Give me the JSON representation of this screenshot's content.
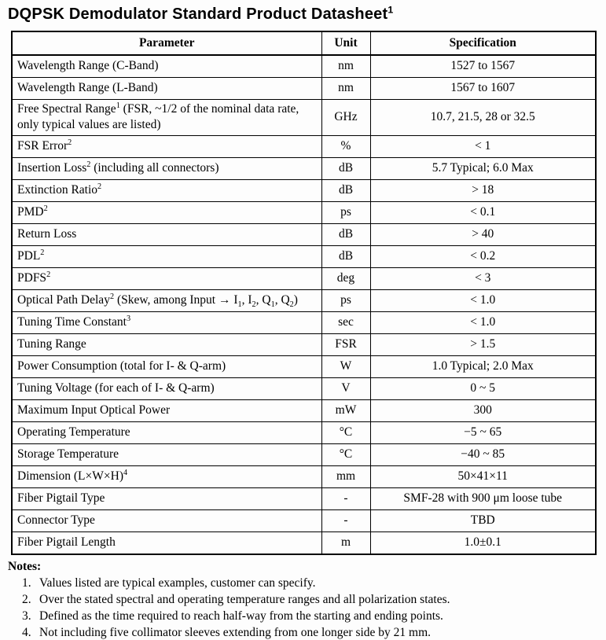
{
  "title": "DQPSK Demodulator Standard Product Datasheet^{1}",
  "table": {
    "headers": [
      "Parameter",
      "Unit",
      "Specification"
    ],
    "rows": [
      {
        "parameter": "Wavelength Range (C-Band)",
        "unit": "nm",
        "specification": "1527 to 1567"
      },
      {
        "parameter": "Wavelength Range (L-Band)",
        "unit": "nm",
        "specification": "1567 to 1607"
      },
      {
        "parameter": "Free Spectral Range^{1} (FSR, ~1/2 of the nominal data rate, only typical values are listed)",
        "unit": "GHz",
        "specification": "10.7, 21.5, 28 or 32.5"
      },
      {
        "parameter": "FSR Error^{2}",
        "unit": "%",
        "specification": "< 1"
      },
      {
        "parameter": "Insertion Loss^{2} (including all connectors)",
        "unit": "dB",
        "specification": "5.7 Typical; 6.0 Max"
      },
      {
        "parameter": "Extinction Ratio^{2}",
        "unit": "dB",
        "specification": "> 18"
      },
      {
        "parameter": "PMD^{2}",
        "unit": "ps",
        "specification": "< 0.1"
      },
      {
        "parameter": "Return Loss",
        "unit": "dB",
        "specification": "> 40"
      },
      {
        "parameter": "PDL^{2}",
        "unit": "dB",
        "specification": "< 0.2"
      },
      {
        "parameter": "PDFS^{2}",
        "unit": "deg",
        "specification": "< 3"
      },
      {
        "parameter": "Optical Path Delay^{2} (Skew, among Input → I_{1}, I_{2}, Q_{1}, Q_{2})",
        "unit": "ps",
        "specification": "< 1.0"
      },
      {
        "parameter": "Tuning Time Constant^{3}",
        "unit": "sec",
        "specification": "< 1.0"
      },
      {
        "parameter": "Tuning Range",
        "unit": "FSR",
        "specification": "> 1.5"
      },
      {
        "parameter": "Power Consumption (total for I- & Q-arm)",
        "unit": "W",
        "specification": "1.0 Typical; 2.0 Max"
      },
      {
        "parameter": "Tuning Voltage (for each of I- & Q-arm)",
        "unit": "V",
        "specification": "0 ~ 5"
      },
      {
        "parameter": "Maximum Input Optical Power",
        "unit": "mW",
        "specification": "300"
      },
      {
        "parameter": "Operating Temperature",
        "unit": "°C",
        "specification": "−5 ~ 65"
      },
      {
        "parameter": "Storage Temperature",
        "unit": "°C",
        "specification": "−40 ~ 85"
      },
      {
        "parameter": "Dimension (L×W×H)^{4}",
        "unit": "mm",
        "specification": "50×41×11"
      },
      {
        "parameter": "Fiber Pigtail Type",
        "unit": "-",
        "specification": "SMF-28 with 900 μm loose tube"
      },
      {
        "parameter": "Connector Type",
        "unit": "-",
        "specification": "TBD"
      },
      {
        "parameter": "Fiber Pigtail Length",
        "unit": "m",
        "specification": "1.0±0.1"
      }
    ]
  },
  "notes": {
    "heading": "Notes:",
    "items": [
      {
        "num": "1.",
        "text": "Values listed are typical examples, customer can specify."
      },
      {
        "num": "2.",
        "text": "Over the stated spectral and operating temperature ranges and all polarization states."
      },
      {
        "num": "3.",
        "text": "Defined as the time required to reach half-way from the starting and ending points."
      },
      {
        "num": "4.",
        "text": "Not including five collimator sleeves extending from one longer side by 21 mm."
      }
    ]
  }
}
